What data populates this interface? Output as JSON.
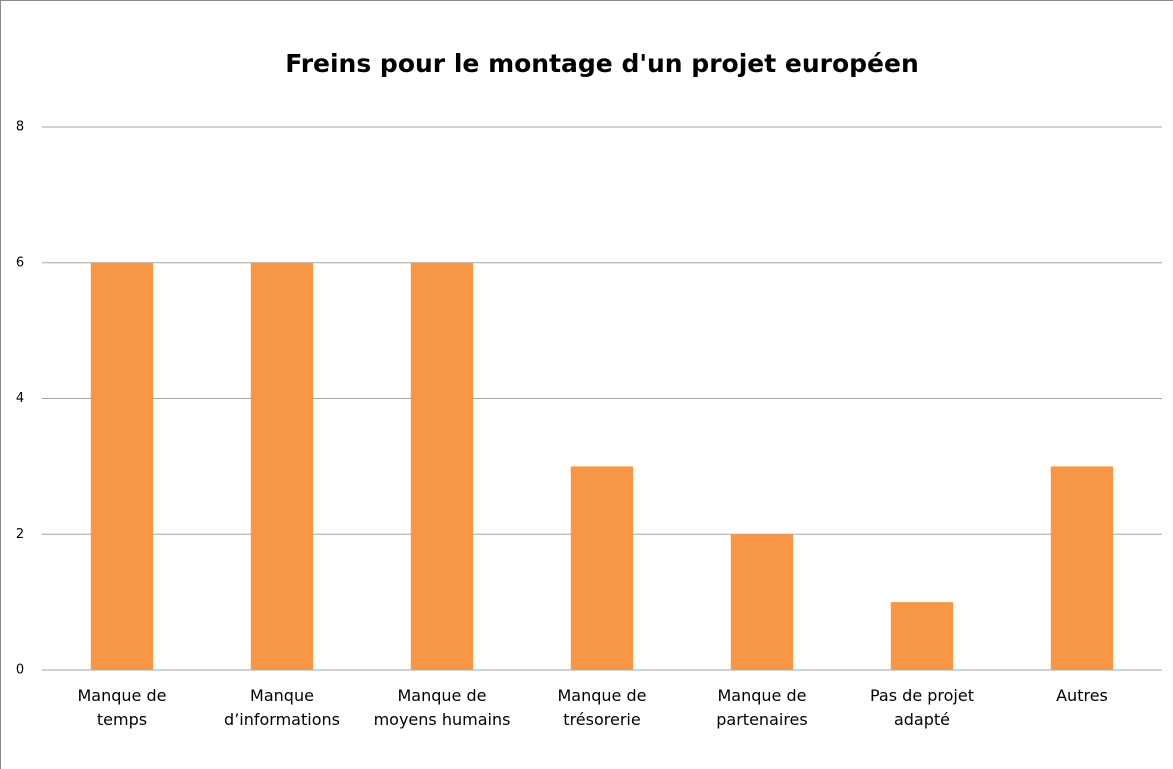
{
  "chart_data": {
    "type": "bar",
    "title": "Freins pour le montage d'un projet européen",
    "categories": [
      "Manque de\ntemps",
      "Manque\nd’informations",
      "Manque de\nmoyens humains",
      "Manque de\ntrésorerie",
      "Manque de\npartenaires",
      "Pas de projet\nadapté",
      "Autres"
    ],
    "values": [
      6,
      6,
      6,
      3,
      2,
      1,
      3
    ],
    "color": "#f79646",
    "ylim": [
      0,
      8
    ],
    "yticks": [
      0,
      2,
      4,
      6,
      8
    ],
    "grid": true
  }
}
